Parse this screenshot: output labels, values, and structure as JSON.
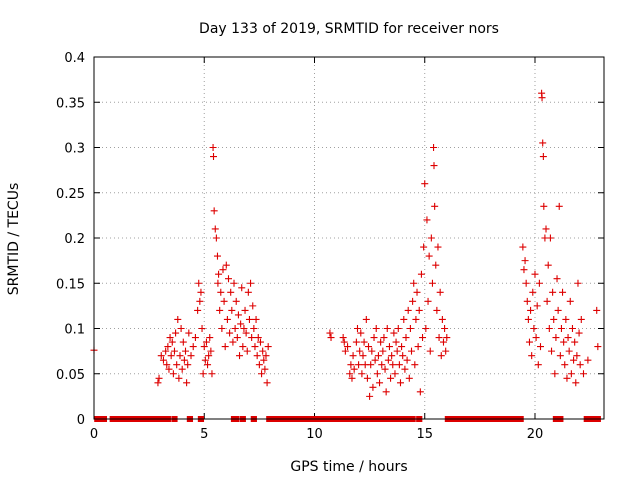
{
  "chart_data": {
    "type": "scatter",
    "title": "Day 133 of 2019, SRMTID for receiver nors",
    "xlabel": "GPS time / hours",
    "ylabel": "SRMTID / TECUs",
    "xlim": [
      0,
      23.13
    ],
    "ylim": [
      0,
      0.4
    ],
    "grid": true,
    "x_ticks": [
      0,
      5,
      10,
      15,
      20
    ],
    "x_tick_labels": [
      "0",
      "5",
      "10",
      "15",
      "20"
    ],
    "y_ticks": [
      0,
      0.05,
      0.1,
      0.15,
      0.2,
      0.25,
      0.3,
      0.35,
      0.4
    ],
    "y_tick_labels": [
      "0",
      "0.05",
      "0.1",
      "0.15",
      "0.2",
      "0.25",
      "0.3",
      "0.35",
      "0.4"
    ],
    "marker": "+",
    "color": "#dd0000",
    "series": [
      {
        "name": "SRMTID",
        "points": [
          [
            0.0,
            0.076
          ],
          [
            2.9,
            0.04
          ],
          [
            2.95,
            0.045
          ],
          [
            3.05,
            0.07
          ],
          [
            3.15,
            0.065
          ],
          [
            3.25,
            0.075
          ],
          [
            3.3,
            0.06
          ],
          [
            3.35,
            0.08
          ],
          [
            3.4,
            0.055
          ],
          [
            3.45,
            0.09
          ],
          [
            3.5,
            0.07
          ],
          [
            3.55,
            0.085
          ],
          [
            3.6,
            0.05
          ],
          [
            3.65,
            0.075
          ],
          [
            3.7,
            0.095
          ],
          [
            3.75,
            0.06
          ],
          [
            3.8,
            0.11
          ],
          [
            3.85,
            0.045
          ],
          [
            3.9,
            0.07
          ],
          [
            3.95,
            0.1
          ],
          [
            4.0,
            0.055
          ],
          [
            4.05,
            0.085
          ],
          [
            4.1,
            0.065
          ],
          [
            4.15,
            0.075
          ],
          [
            4.2,
            0.04
          ],
          [
            4.25,
            0.06
          ],
          [
            4.3,
            0.095
          ],
          [
            4.4,
            0.07
          ],
          [
            4.5,
            0.08
          ],
          [
            4.6,
            0.09
          ],
          [
            4.7,
            0.12
          ],
          [
            4.75,
            0.15
          ],
          [
            4.8,
            0.13
          ],
          [
            4.85,
            0.14
          ],
          [
            4.9,
            0.1
          ],
          [
            4.95,
            0.05
          ],
          [
            5.0,
            0.08
          ],
          [
            5.05,
            0.065
          ],
          [
            5.1,
            0.085
          ],
          [
            5.15,
            0.06
          ],
          [
            5.2,
            0.07
          ],
          [
            5.25,
            0.09
          ],
          [
            5.3,
            0.075
          ],
          [
            5.35,
            0.05
          ],
          [
            5.4,
            0.3
          ],
          [
            5.42,
            0.29
          ],
          [
            5.45,
            0.23
          ],
          [
            5.5,
            0.21
          ],
          [
            5.55,
            0.2
          ],
          [
            5.6,
            0.18
          ],
          [
            5.62,
            0.15
          ],
          [
            5.65,
            0.16
          ],
          [
            5.7,
            0.12
          ],
          [
            5.75,
            0.14
          ],
          [
            5.8,
            0.1
          ],
          [
            5.85,
            0.165
          ],
          [
            5.9,
            0.13
          ],
          [
            5.95,
            0.08
          ],
          [
            6.0,
            0.17
          ],
          [
            6.05,
            0.11
          ],
          [
            6.1,
            0.155
          ],
          [
            6.15,
            0.095
          ],
          [
            6.2,
            0.14
          ],
          [
            6.25,
            0.12
          ],
          [
            6.3,
            0.085
          ],
          [
            6.35,
            0.15
          ],
          [
            6.4,
            0.1
          ],
          [
            6.45,
            0.13
          ],
          [
            6.5,
            0.09
          ],
          [
            6.55,
            0.115
          ],
          [
            6.6,
            0.07
          ],
          [
            6.65,
            0.105
          ],
          [
            6.7,
            0.145
          ],
          [
            6.75,
            0.08
          ],
          [
            6.8,
            0.1
          ],
          [
            6.85,
            0.12
          ],
          [
            6.9,
            0.095
          ],
          [
            6.95,
            0.075
          ],
          [
            7.0,
            0.14
          ],
          [
            7.05,
            0.11
          ],
          [
            7.1,
            0.15
          ],
          [
            7.15,
            0.09
          ],
          [
            7.2,
            0.125
          ],
          [
            7.25,
            0.1
          ],
          [
            7.3,
            0.08
          ],
          [
            7.35,
            0.11
          ],
          [
            7.4,
            0.07
          ],
          [
            7.45,
            0.09
          ],
          [
            7.5,
            0.06
          ],
          [
            7.55,
            0.085
          ],
          [
            7.6,
            0.05
          ],
          [
            7.65,
            0.075
          ],
          [
            7.7,
            0.065
          ],
          [
            7.75,
            0.055
          ],
          [
            7.8,
            0.07
          ],
          [
            7.85,
            0.04
          ],
          [
            7.9,
            0.08
          ],
          [
            10.7,
            0.095
          ],
          [
            10.75,
            0.09
          ],
          [
            11.3,
            0.09
          ],
          [
            11.35,
            0.085
          ],
          [
            11.4,
            0.075
          ],
          [
            11.5,
            0.08
          ],
          [
            11.6,
            0.05
          ],
          [
            11.65,
            0.06
          ],
          [
            11.7,
            0.045
          ],
          [
            11.75,
            0.07
          ],
          [
            11.8,
            0.055
          ],
          [
            11.9,
            0.085
          ],
          [
            11.95,
            0.1
          ],
          [
            12.0,
            0.06
          ],
          [
            12.05,
            0.075
          ],
          [
            12.1,
            0.095
          ],
          [
            12.15,
            0.05
          ],
          [
            12.2,
            0.07
          ],
          [
            12.25,
            0.085
          ],
          [
            12.3,
            0.06
          ],
          [
            12.35,
            0.11
          ],
          [
            12.4,
            0.045
          ],
          [
            12.45,
            0.08
          ],
          [
            12.5,
            0.025
          ],
          [
            12.55,
            0.06
          ],
          [
            12.6,
            0.075
          ],
          [
            12.65,
            0.035
          ],
          [
            12.7,
            0.09
          ],
          [
            12.75,
            0.065
          ],
          [
            12.8,
            0.1
          ],
          [
            12.85,
            0.05
          ],
          [
            12.9,
            0.07
          ],
          [
            12.95,
            0.04
          ],
          [
            13.0,
            0.085
          ],
          [
            13.05,
            0.06
          ],
          [
            13.1,
            0.075
          ],
          [
            13.15,
            0.09
          ],
          [
            13.2,
            0.055
          ],
          [
            13.25,
            0.03
          ],
          [
            13.3,
            0.1
          ],
          [
            13.35,
            0.065
          ],
          [
            13.4,
            0.08
          ],
          [
            13.45,
            0.045
          ],
          [
            13.5,
            0.07
          ],
          [
            13.55,
            0.06
          ],
          [
            13.6,
            0.095
          ],
          [
            13.65,
            0.05
          ],
          [
            13.7,
            0.085
          ],
          [
            13.75,
            0.075
          ],
          [
            13.8,
            0.1
          ],
          [
            13.85,
            0.06
          ],
          [
            13.9,
            0.04
          ],
          [
            13.95,
            0.08
          ],
          [
            14.0,
            0.07
          ],
          [
            14.05,
            0.11
          ],
          [
            14.1,
            0.055
          ],
          [
            14.15,
            0.09
          ],
          [
            14.2,
            0.065
          ],
          [
            14.25,
            0.12
          ],
          [
            14.3,
            0.045
          ],
          [
            14.35,
            0.1
          ],
          [
            14.4,
            0.075
          ],
          [
            14.45,
            0.13
          ],
          [
            14.5,
            0.15
          ],
          [
            14.55,
            0.06
          ],
          [
            14.6,
            0.11
          ],
          [
            14.65,
            0.14
          ],
          [
            14.7,
            0.08
          ],
          [
            14.75,
            0.12
          ],
          [
            14.8,
            0.03
          ],
          [
            14.85,
            0.16
          ],
          [
            14.9,
            0.09
          ],
          [
            14.95,
            0.19
          ],
          [
            15.0,
            0.26
          ],
          [
            15.05,
            0.1
          ],
          [
            15.1,
            0.22
          ],
          [
            15.15,
            0.13
          ],
          [
            15.2,
            0.18
          ],
          [
            15.25,
            0.075
          ],
          [
            15.3,
            0.2
          ],
          [
            15.35,
            0.15
          ],
          [
            15.4,
            0.3
          ],
          [
            15.42,
            0.28
          ],
          [
            15.45,
            0.235
          ],
          [
            15.5,
            0.17
          ],
          [
            15.55,
            0.12
          ],
          [
            15.6,
            0.19
          ],
          [
            15.65,
            0.09
          ],
          [
            15.7,
            0.14
          ],
          [
            15.75,
            0.07
          ],
          [
            15.8,
            0.11
          ],
          [
            15.85,
            0.085
          ],
          [
            15.9,
            0.1
          ],
          [
            15.95,
            0.075
          ],
          [
            16.0,
            0.09
          ],
          [
            19.45,
            0.19
          ],
          [
            19.5,
            0.165
          ],
          [
            19.55,
            0.175
          ],
          [
            19.6,
            0.15
          ],
          [
            19.65,
            0.13
          ],
          [
            19.7,
            0.11
          ],
          [
            19.75,
            0.085
          ],
          [
            19.8,
            0.12
          ],
          [
            19.85,
            0.07
          ],
          [
            19.9,
            0.14
          ],
          [
            19.95,
            0.1
          ],
          [
            20.0,
            0.16
          ],
          [
            20.05,
            0.09
          ],
          [
            20.1,
            0.125
          ],
          [
            20.15,
            0.06
          ],
          [
            20.2,
            0.15
          ],
          [
            20.25,
            0.08
          ],
          [
            20.3,
            0.36
          ],
          [
            20.32,
            0.355
          ],
          [
            20.35,
            0.305
          ],
          [
            20.38,
            0.29
          ],
          [
            20.4,
            0.235
          ],
          [
            20.45,
            0.2
          ],
          [
            20.5,
            0.21
          ],
          [
            20.55,
            0.13
          ],
          [
            20.6,
            0.17
          ],
          [
            20.65,
            0.1
          ],
          [
            20.7,
            0.2
          ],
          [
            20.75,
            0.075
          ],
          [
            20.8,
            0.14
          ],
          [
            20.85,
            0.11
          ],
          [
            20.9,
            0.05
          ],
          [
            20.95,
            0.09
          ],
          [
            21.0,
            0.155
          ],
          [
            21.05,
            0.12
          ],
          [
            21.1,
            0.235
          ],
          [
            21.15,
            0.07
          ],
          [
            21.2,
            0.1
          ],
          [
            21.25,
            0.14
          ],
          [
            21.3,
            0.085
          ],
          [
            21.35,
            0.06
          ],
          [
            21.4,
            0.11
          ],
          [
            21.45,
            0.045
          ],
          [
            21.5,
            0.09
          ],
          [
            21.55,
            0.075
          ],
          [
            21.6,
            0.13
          ],
          [
            21.65,
            0.05
          ],
          [
            21.7,
            0.1
          ],
          [
            21.75,
            0.065
          ],
          [
            21.8,
            0.085
          ],
          [
            21.85,
            0.04
          ],
          [
            21.9,
            0.07
          ],
          [
            21.95,
            0.15
          ],
          [
            22.0,
            0.095
          ],
          [
            22.05,
            0.06
          ],
          [
            22.1,
            0.11
          ],
          [
            22.2,
            0.05
          ],
          [
            22.4,
            0.065
          ],
          [
            22.8,
            0.12
          ],
          [
            22.85,
            0.08
          ]
        ]
      },
      {
        "name": "zero-level",
        "x_ranges": [
          [
            0.1,
            0.5
          ],
          [
            0.8,
            3.4
          ],
          [
            3.6,
            3.7
          ],
          [
            4.3,
            4.4
          ],
          [
            4.8,
            4.9
          ],
          [
            6.3,
            6.5
          ],
          [
            6.7,
            6.8
          ],
          [
            7.2,
            7.3
          ],
          [
            7.9,
            14.5
          ],
          [
            14.7,
            14.8
          ],
          [
            16.0,
            19.4
          ],
          [
            20.9,
            21.2
          ],
          [
            22.3,
            22.9
          ]
        ],
        "y": 0
      }
    ]
  }
}
